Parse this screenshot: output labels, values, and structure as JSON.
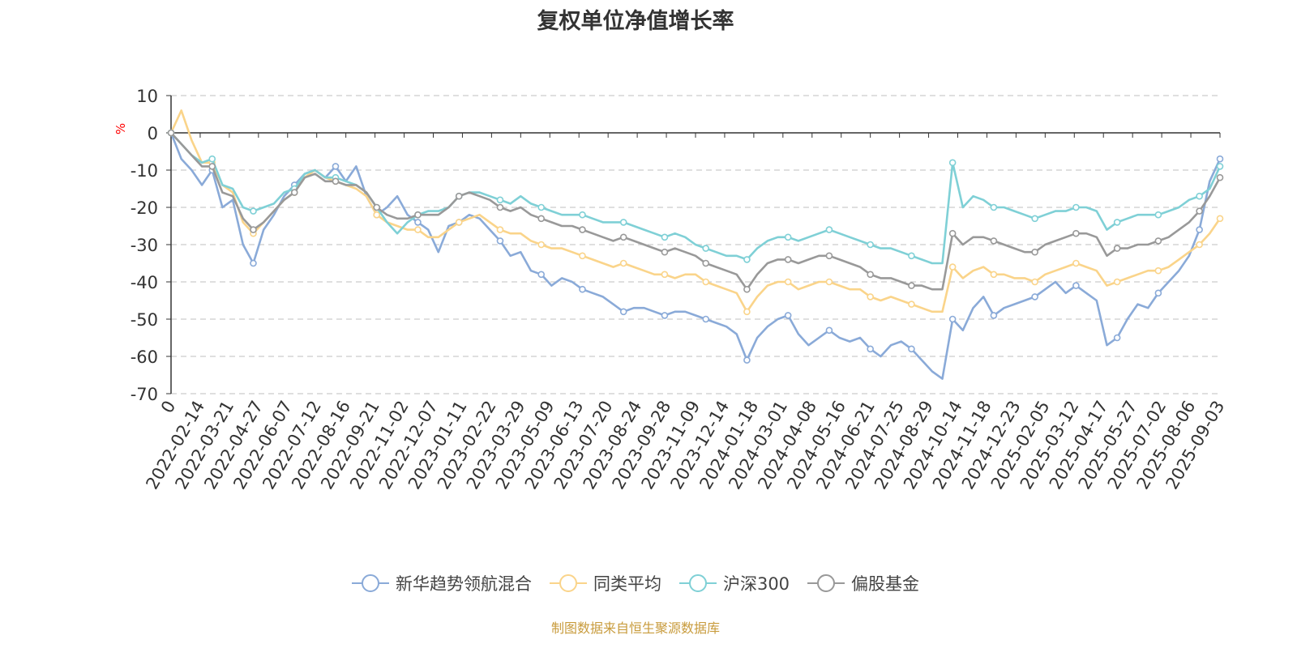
{
  "chart_data": {
    "type": "line",
    "title": "复权单位净值增长率",
    "ylabel": "%",
    "ylim": [
      -70,
      10
    ],
    "yticks": [
      10,
      0,
      -10,
      -20,
      -30,
      -40,
      -50,
      -60,
      -70
    ],
    "x_origin_label": "0",
    "x_tick_labels": [
      "2022-02-14",
      "2022-03-21",
      "2022-04-27",
      "2022-06-07",
      "2022-07-12",
      "2022-08-16",
      "2022-09-21",
      "2022-11-02",
      "2022-12-07",
      "2023-01-11",
      "2023-02-22",
      "2023-03-29",
      "2023-05-09",
      "2023-06-13",
      "2023-07-20",
      "2023-08-24",
      "2023-09-28",
      "2023-11-09",
      "2023-12-14",
      "2024-01-18",
      "2024-03-01",
      "2024-04-08",
      "2024-05-16",
      "2024-06-21",
      "2024-07-25",
      "2024-08-29",
      "2024-10-14",
      "2024-11-18",
      "2024-12-23",
      "2025-02-05",
      "2025-03-12",
      "2025-04-17",
      "2025-05-27",
      "2025-07-02",
      "2025-08-06",
      "2025-09-03"
    ],
    "grid": "dashed horizontal",
    "legend_position": "bottom",
    "series": [
      {
        "name": "新华趋势领航混合",
        "color": "#8aaad8",
        "values": [
          0,
          -7,
          -10,
          -14,
          -10,
          -20,
          -18,
          -30,
          -35,
          -26,
          -22,
          -17,
          -14,
          -11,
          -10,
          -12,
          -9,
          -13,
          -9,
          -17,
          -22,
          -20,
          -17,
          -22,
          -24,
          -26,
          -32,
          -25,
          -24,
          -22,
          -23,
          -26,
          -29,
          -33,
          -32,
          -37,
          -38,
          -41,
          -39,
          -40,
          -42,
          -43,
          -44,
          -46,
          -48,
          -47,
          -47,
          -48,
          -49,
          -48,
          -48,
          -49,
          -50,
          -51,
          -52,
          -54,
          -61,
          -55,
          -52,
          -50,
          -49,
          -54,
          -57,
          -55,
          -53,
          -55,
          -56,
          -55,
          -58,
          -60,
          -57,
          -56,
          -58,
          -61,
          -64,
          -66,
          -50,
          -53,
          -47,
          -44,
          -49,
          -47,
          -46,
          -45,
          -44,
          -42,
          -40,
          -43,
          -41,
          -43,
          -45,
          -57,
          -55,
          -50,
          -46,
          -47,
          -43,
          -40,
          -37,
          -33,
          -26,
          -13,
          -7
        ]
      },
      {
        "name": "同类平均",
        "color": "#fad48a",
        "values": [
          0,
          6,
          -2,
          -8,
          -8,
          -14,
          -16,
          -24,
          -27,
          -24,
          -21,
          -18,
          -16,
          -12,
          -10,
          -12,
          -13,
          -14,
          -15,
          -17,
          -22,
          -24,
          -25,
          -26,
          -26,
          -28,
          -28,
          -26,
          -24,
          -23,
          -22,
          -24,
          -26,
          -27,
          -27,
          -29,
          -30,
          -31,
          -31,
          -32,
          -33,
          -34,
          -35,
          -36,
          -35,
          -36,
          -37,
          -38,
          -38,
          -39,
          -38,
          -38,
          -40,
          -41,
          -42,
          -43,
          -48,
          -44,
          -41,
          -40,
          -40,
          -42,
          -41,
          -40,
          -40,
          -41,
          -42,
          -42,
          -44,
          -45,
          -44,
          -45,
          -46,
          -47,
          -48,
          -48,
          -36,
          -39,
          -37,
          -36,
          -38,
          -38,
          -39,
          -39,
          -40,
          -38,
          -37,
          -36,
          -35,
          -36,
          -37,
          -41,
          -40,
          -39,
          -38,
          -37,
          -37,
          -36,
          -34,
          -32,
          -30,
          -27,
          -23
        ]
      },
      {
        "name": "沪深300",
        "color": "#7fd0d6",
        "values": [
          0,
          -3,
          -6,
          -8,
          -7,
          -14,
          -15,
          -20,
          -21,
          -20,
          -19,
          -16,
          -15,
          -11,
          -10,
          -12,
          -12,
          -13,
          -14,
          -16,
          -20,
          -24,
          -27,
          -24,
          -22,
          -21,
          -21,
          -20,
          -17,
          -16,
          -16,
          -17,
          -18,
          -19,
          -17,
          -19,
          -20,
          -21,
          -22,
          -22,
          -22,
          -23,
          -24,
          -24,
          -24,
          -25,
          -26,
          -27,
          -28,
          -27,
          -28,
          -30,
          -31,
          -32,
          -33,
          -33,
          -34,
          -31,
          -29,
          -28,
          -28,
          -29,
          -28,
          -27,
          -26,
          -27,
          -28,
          -29,
          -30,
          -31,
          -31,
          -32,
          -33,
          -34,
          -35,
          -35,
          -8,
          -20,
          -17,
          -18,
          -20,
          -20,
          -21,
          -22,
          -23,
          -22,
          -21,
          -21,
          -20,
          -20,
          -21,
          -26,
          -24,
          -23,
          -22,
          -22,
          -22,
          -21,
          -20,
          -18,
          -17,
          -15,
          -9
        ]
      },
      {
        "name": "偏股基金",
        "color": "#999999",
        "values": [
          0,
          -3,
          -6,
          -9,
          -9,
          -16,
          -17,
          -23,
          -26,
          -24,
          -21,
          -18,
          -16,
          -12,
          -11,
          -13,
          -13,
          -14,
          -14,
          -16,
          -20,
          -22,
          -23,
          -23,
          -22,
          -22,
          -22,
          -20,
          -17,
          -16,
          -17,
          -18,
          -20,
          -21,
          -20,
          -22,
          -23,
          -24,
          -25,
          -25,
          -26,
          -27,
          -28,
          -29,
          -28,
          -29,
          -30,
          -31,
          -32,
          -31,
          -32,
          -33,
          -35,
          -36,
          -37,
          -38,
          -42,
          -38,
          -35,
          -34,
          -34,
          -35,
          -34,
          -33,
          -33,
          -34,
          -35,
          -36,
          -38,
          -39,
          -39,
          -40,
          -41,
          -41,
          -42,
          -42,
          -27,
          -30,
          -28,
          -28,
          -29,
          -30,
          -31,
          -32,
          -32,
          -30,
          -29,
          -28,
          -27,
          -27,
          -28,
          -33,
          -31,
          -31,
          -30,
          -30,
          -29,
          -28,
          -26,
          -24,
          -21,
          -17,
          -12
        ]
      }
    ]
  },
  "footer": {
    "source": "制图数据来自恒生聚源数据库"
  }
}
